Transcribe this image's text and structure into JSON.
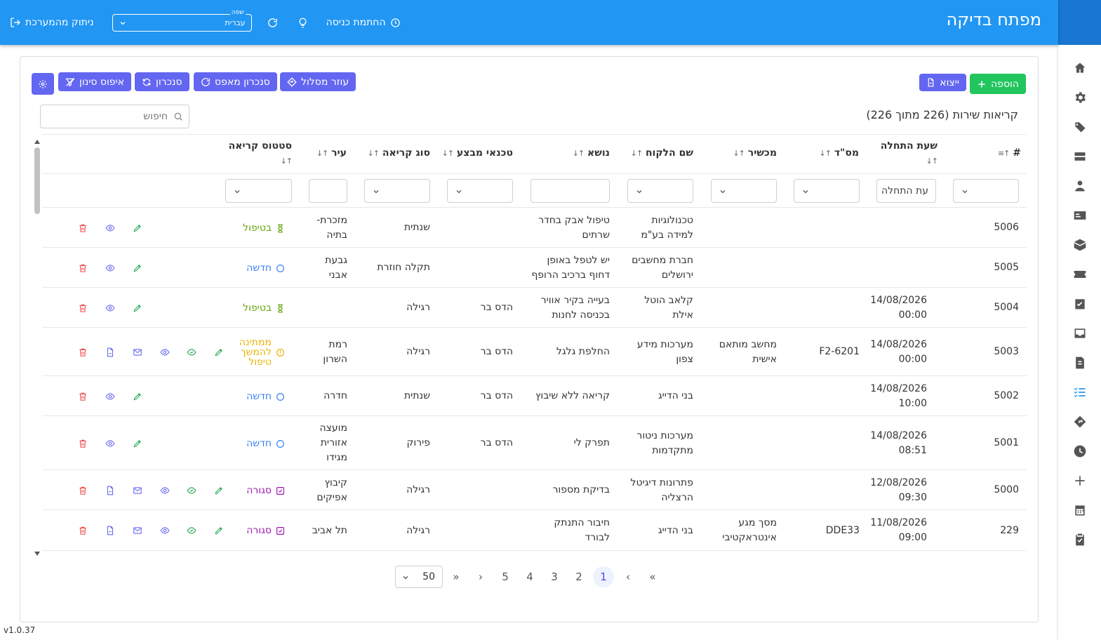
{
  "header": {
    "title": "מפתח בדיקה",
    "logout_label": "ניתוק מהמערכת",
    "language_legend": "שפה",
    "language_value": "עברית",
    "signin_stamp_label": "החתמת כניסה"
  },
  "toolbar": {
    "add_label": "הוספה",
    "export_label": "ייצוא",
    "route_helper_label": "עוזר מסלול",
    "sync_from_zero_label": "סנכרון מאפס",
    "sync_label": "סנכרון",
    "reset_filter_label": "איפוס סינון"
  },
  "list": {
    "title": "קריאות שירות (226 מתוך 226)",
    "search_placeholder": "חיפוש"
  },
  "table": {
    "columns": {
      "id": "#",
      "start_time": "שעת התחלה",
      "serial": "מס\"ד",
      "device": "מכשיר",
      "customer": "שם הלקוח",
      "subject": "נושא",
      "technicians": "טכנאי מבצע",
      "call_type": "סוג קריאה",
      "city": "עיר",
      "status": "סטטוס קריאה"
    },
    "filters": {
      "start_time_placeholder": "עת התחלה"
    },
    "rows": [
      {
        "id": "5006",
        "start": [
          "",
          ""
        ],
        "serial": "",
        "device": [
          "",
          ""
        ],
        "customer": [
          "טכנולוגיות",
          "למידה בע\"מ"
        ],
        "subject": [
          "טיפול אבק בחדר",
          "שרתים"
        ],
        "tech": "",
        "type": "שנתית",
        "city": [
          "מזכרת-",
          "בתיה"
        ],
        "status": [
          "בטיפול"
        ],
        "status_kind": "in-progress"
      },
      {
        "id": "5005",
        "start": [
          "",
          ""
        ],
        "serial": "",
        "device": [
          "",
          ""
        ],
        "customer": [
          "חברת מחשבים",
          "ירושלים"
        ],
        "subject": [
          "יש לטפל באופן",
          "דחוף ברכיב הרופף"
        ],
        "tech": "",
        "type": "תקלה חוזרת",
        "city": [
          "גבעת",
          "אבני"
        ],
        "status": [
          "חדשה"
        ],
        "status_kind": "new"
      },
      {
        "id": "5004",
        "start": [
          "14/08/2026",
          "00:00"
        ],
        "serial": "",
        "device": [
          "",
          ""
        ],
        "customer": [
          "קלאב הוטל",
          "אילת"
        ],
        "subject": [
          "בעייה בקיר אוויר",
          "בכניסה לחנות"
        ],
        "tech": "הדס בר",
        "type": "רגילה",
        "city": [
          "",
          ""
        ],
        "status": [
          "בטיפול"
        ],
        "status_kind": "in-progress"
      },
      {
        "id": "5003",
        "start": [
          "14/08/2026",
          "00:00"
        ],
        "serial": "F2-6201",
        "device": [
          "מחשב מותאם",
          "אישית"
        ],
        "customer": [
          "מערכות מידע",
          "צפון"
        ],
        "subject": [
          "החלפת גלגל",
          ""
        ],
        "tech": "הדס בר",
        "type": "רגילה",
        "city": [
          "רמת",
          "השרון"
        ],
        "status": [
          "ממתינה",
          "להמשך",
          "טיפול"
        ],
        "status_kind": "pending"
      },
      {
        "id": "5002",
        "start": [
          "14/08/2026",
          "10:00"
        ],
        "serial": "",
        "device": [
          "",
          ""
        ],
        "customer": [
          "בני הדייג",
          ""
        ],
        "subject": [
          "קריאה ללא שיבוץ",
          ""
        ],
        "tech": "הדס בר",
        "type": "שנתית",
        "city": [
          "חדרה",
          ""
        ],
        "status": [
          "חדשה"
        ],
        "status_kind": "new"
      },
      {
        "id": "5001",
        "start": [
          "14/08/2026",
          "08:51"
        ],
        "serial": "",
        "device": [
          "",
          ""
        ],
        "customer": [
          "מערכות ניטור",
          "מתקדמות"
        ],
        "subject": [
          "תפרק לי",
          ""
        ],
        "tech": "הדס בר",
        "type": "פירוק",
        "city": [
          "מועצה",
          "אזורית",
          "מגידו"
        ],
        "status": [
          "חדשה"
        ],
        "status_kind": "new"
      },
      {
        "id": "5000",
        "start": [
          "12/08/2026",
          "09:30"
        ],
        "serial": "",
        "device": [
          "",
          ""
        ],
        "customer": [
          "פתרונות דיגיטל",
          "הרצליה"
        ],
        "subject": [
          "בדיקת מספור",
          ""
        ],
        "tech": "",
        "type": "רגילה",
        "city": [
          "קיבוץ",
          "אפיקים"
        ],
        "status": [
          "סגורה"
        ],
        "status_kind": "closed"
      },
      {
        "id": "229",
        "start": [
          "11/08/2026",
          "09:00"
        ],
        "serial": "DDE33",
        "device": [
          "מסך מגע",
          "אינטראקטיבי"
        ],
        "customer": [
          "בני הדייג",
          ""
        ],
        "subject": [
          "חיבור התנתק",
          "לבורד"
        ],
        "tech": "",
        "type": "רגילה",
        "city": [
          "תל אביב",
          ""
        ],
        "status": [
          "סגורה"
        ],
        "status_kind": "closed"
      }
    ]
  },
  "pagination": {
    "pages": [
      "1",
      "2",
      "3",
      "4",
      "5"
    ],
    "current_page": "1",
    "per_page": "50",
    "first": "«",
    "prev": "‹",
    "next": "›",
    "last": "»"
  },
  "version": "v1.0.37",
  "colors": {
    "header": "#2196f3",
    "rail_header": "#1976d2",
    "accent": "#6366f1",
    "add": "#22c55e",
    "in_progress": "#65a30d",
    "new": "#3b82f6",
    "pending": "#eab308",
    "closed": "#a21caf",
    "delete": "#ef4444",
    "edit": "#16a34a",
    "view": "#6366f1"
  },
  "rail_icons": [
    "home-icon",
    "gear-icon",
    "tags-icon",
    "server-icon",
    "user-cog-icon",
    "id-card-icon",
    "box-icon",
    "ticket-icon",
    "calendar-check-icon",
    "inbox-icon",
    "invoice-icon",
    "list-check-icon",
    "route-icon",
    "clock-icon",
    "plus-icon",
    "calendar-icon",
    "clipboard-check-icon"
  ]
}
